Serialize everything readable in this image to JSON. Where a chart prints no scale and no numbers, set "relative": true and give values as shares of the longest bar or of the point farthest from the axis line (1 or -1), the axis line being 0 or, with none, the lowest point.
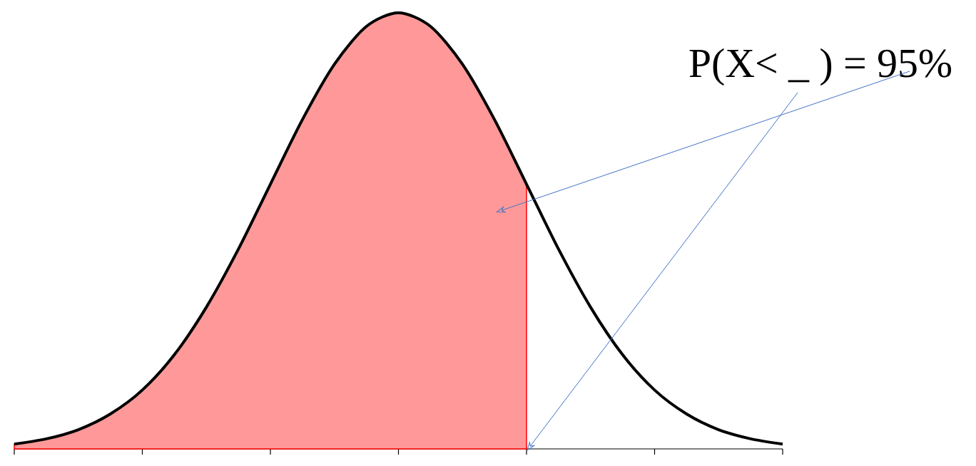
{
  "chart_data": {
    "type": "area",
    "relative": true,
    "categories": [
      null,
      null,
      null,
      null,
      null,
      null,
      null,
      null,
      null,
      null,
      null,
      null,
      null,
      null,
      null,
      null,
      null,
      null,
      null,
      null,
      null,
      null,
      null,
      null,
      null
    ],
    "series": [
      {
        "color": "#ff0000",
        "values": [
          0.011,
          0.023,
          0.044,
          0.08,
          0.135,
          0.216,
          0.325,
          0.458,
          0.607,
          0.755,
          0.882,
          0.969,
          1,
          0.969,
          0.882,
          0.755,
          0.607,
          null,
          null,
          null,
          null,
          null,
          null,
          null,
          null
        ]
      },
      {
        "type": "line",
        "color": "#000000",
        "values": [
          0.011,
          0.023,
          0.044,
          0.08,
          0.135,
          0.216,
          0.325,
          0.458,
          0.607,
          0.755,
          0.882,
          0.969,
          1,
          0.969,
          0.882,
          0.755,
          0.607,
          0.458,
          0.325,
          0.216,
          0.135,
          0.08,
          0.044,
          0.023,
          0.011
        ]
      }
    ],
    "annotations": [
      "P(X< _ ) = 95%"
    ]
  }
}
